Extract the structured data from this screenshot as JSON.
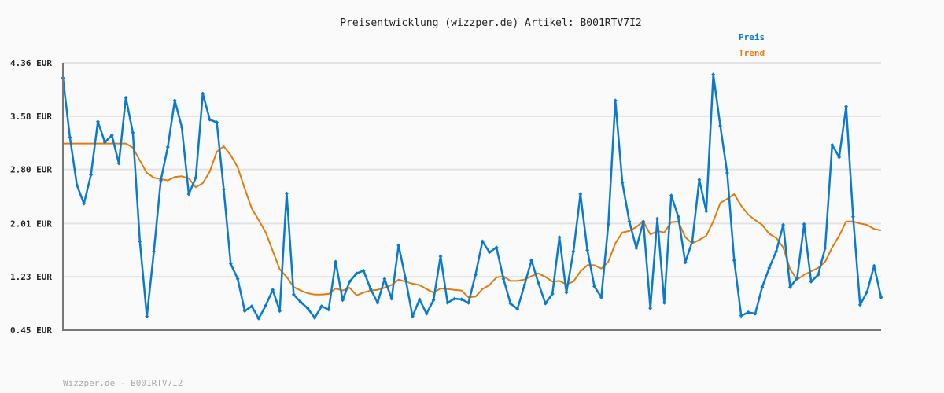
{
  "chart_data": {
    "type": "line",
    "title": "Preisentwicklung (wizzper.de) Artikel: B001RTV7I2",
    "xlabel": "",
    "ylabel": "",
    "ylim": [
      0.45,
      4.36
    ],
    "yticks": [
      "4.36 EUR",
      "3.58 EUR",
      "2.80 EUR",
      "2.01 EUR",
      "1.23 EUR",
      "0.45 EUR"
    ],
    "ytick_values": [
      4.36,
      3.58,
      2.8,
      2.01,
      1.23,
      0.45
    ],
    "grid": true,
    "legend_placement": "top-right",
    "series": [
      {
        "name": "Preis",
        "color": "#0a7ad0",
        "markers": true,
        "values": [
          4.14,
          3.27,
          2.57,
          2.3,
          2.72,
          3.5,
          3.2,
          3.3,
          2.89,
          3.85,
          3.34,
          1.75,
          0.65,
          1.6,
          2.64,
          3.13,
          3.81,
          3.42,
          2.44,
          2.68,
          3.91,
          3.53,
          3.49,
          2.51,
          1.42,
          1.2,
          0.73,
          0.8,
          0.62,
          0.81,
          1.04,
          0.73,
          2.45,
          0.97,
          0.86,
          0.77,
          0.63,
          0.8,
          0.75,
          1.45,
          0.89,
          1.16,
          1.28,
          1.32,
          1.05,
          0.85,
          1.2,
          0.91,
          1.69,
          1.2,
          0.65,
          0.9,
          0.69,
          0.89,
          1.53,
          0.85,
          0.91,
          0.9,
          0.85,
          1.26,
          1.75,
          1.59,
          1.66,
          1.2,
          0.84,
          0.76,
          1.11,
          1.47,
          1.14,
          0.84,
          0.98,
          1.81,
          1.0,
          1.6,
          2.44,
          1.62,
          1.09,
          0.93,
          2.0,
          3.81,
          2.61,
          2.04,
          1.65,
          2.04,
          0.77,
          2.08,
          0.85,
          2.42,
          2.11,
          1.44,
          1.75,
          2.65,
          2.19,
          4.19,
          3.44,
          2.75,
          1.47,
          0.66,
          0.71,
          0.69,
          1.08,
          1.36,
          1.6,
          1.99,
          1.08,
          1.21,
          2.0,
          1.16,
          1.26,
          1.65,
          3.16,
          2.98,
          3.72,
          2.11,
          0.82,
          1.01,
          1.39,
          0.93
        ]
      },
      {
        "name": "Trend",
        "color": "#e07c0c",
        "markers": false,
        "values": [
          3.18,
          3.18,
          3.18,
          3.18,
          3.18,
          3.18,
          3.18,
          3.18,
          3.18,
          3.18,
          3.12,
          2.93,
          2.75,
          2.68,
          2.66,
          2.64,
          2.69,
          2.7,
          2.67,
          2.54,
          2.6,
          2.77,
          3.06,
          3.14,
          3.01,
          2.83,
          2.52,
          2.23,
          2.06,
          1.88,
          1.61,
          1.34,
          1.23,
          1.08,
          1.03,
          0.99,
          0.97,
          0.97,
          0.98,
          1.06,
          1.03,
          1.07,
          0.96,
          1.0,
          1.03,
          1.04,
          1.07,
          1.11,
          1.19,
          1.16,
          1.13,
          1.11,
          1.05,
          1.0,
          1.06,
          1.05,
          1.04,
          1.03,
          0.93,
          0.94,
          1.05,
          1.11,
          1.22,
          1.24,
          1.17,
          1.17,
          1.19,
          1.24,
          1.28,
          1.23,
          1.16,
          1.17,
          1.12,
          1.16,
          1.31,
          1.4,
          1.4,
          1.35,
          1.45,
          1.72,
          1.88,
          1.9,
          1.96,
          2.04,
          1.85,
          1.9,
          1.88,
          2.03,
          2.04,
          1.81,
          1.72,
          1.77,
          1.83,
          2.04,
          2.31,
          2.37,
          2.44,
          2.27,
          2.14,
          2.06,
          1.99,
          1.86,
          1.8,
          1.66,
          1.34,
          1.19,
          1.26,
          1.31,
          1.36,
          1.45,
          1.66,
          1.83,
          2.04,
          2.04,
          2.01,
          1.99,
          1.93,
          1.91
        ]
      }
    ]
  },
  "footer": "Wizzper.de - B001RTV7I2",
  "colors": {
    "grid": "#e2e2e2",
    "axis": "#777777",
    "background": "#fafafa"
  }
}
